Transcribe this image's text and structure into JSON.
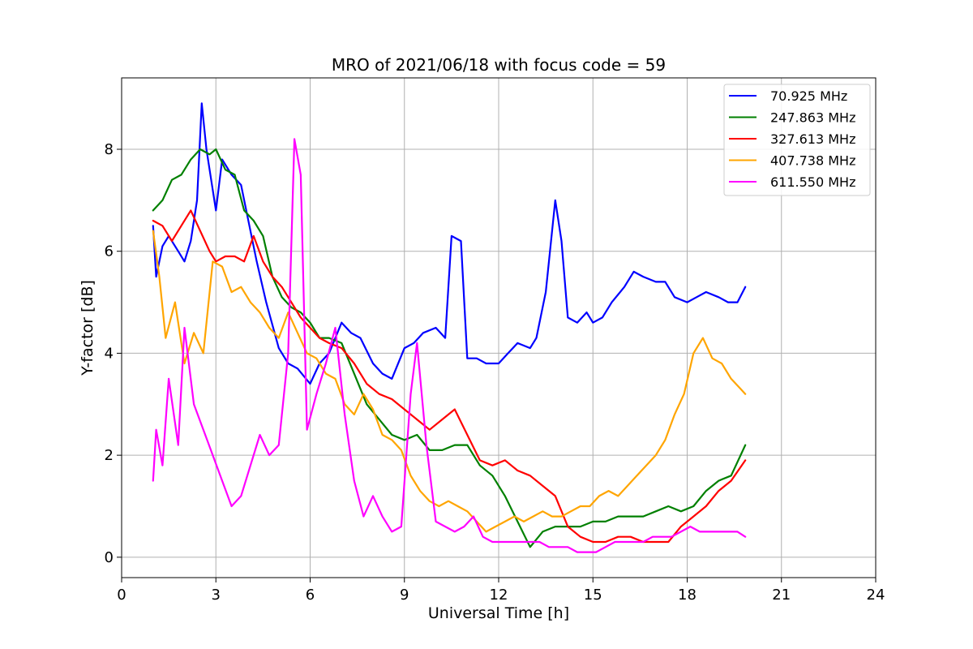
{
  "chart_data": {
    "type": "line",
    "title": "MRO of 2021/06/18 with focus code = 59",
    "xlabel": "Universal Time [h]",
    "ylabel": "Y-factor [dB]",
    "xlim": [
      0,
      24
    ],
    "ylim": [
      -0.4,
      9.4
    ],
    "xticks": [
      0,
      3,
      6,
      9,
      12,
      15,
      18,
      21,
      24
    ],
    "yticks": [
      0,
      2,
      4,
      6,
      8
    ],
    "grid": true,
    "legend_position": "top-right",
    "series": [
      {
        "name": " 70.925 MHz",
        "color": "#0000ff",
        "x": [
          1.0,
          1.1,
          1.3,
          1.5,
          1.8,
          2.0,
          2.2,
          2.4,
          2.55,
          2.7,
          3.0,
          3.2,
          3.5,
          3.8,
          4.0,
          4.3,
          4.6,
          5.0,
          5.3,
          5.6,
          6.0,
          6.3,
          6.6,
          7.0,
          7.3,
          7.6,
          8.0,
          8.3,
          8.6,
          9.0,
          9.3,
          9.6,
          10.0,
          10.3,
          10.5,
          10.8,
          11.0,
          11.3,
          11.6,
          12.0,
          12.3,
          12.6,
          13.0,
          13.2,
          13.5,
          13.8,
          14.0,
          14.2,
          14.5,
          14.8,
          15.0,
          15.3,
          15.6,
          16.0,
          16.3,
          16.6,
          17.0,
          17.3,
          17.6,
          18.0,
          18.3,
          18.6,
          19.0,
          19.3,
          19.6,
          19.85
        ],
        "y": [
          6.5,
          5.5,
          6.1,
          6.3,
          6.0,
          5.8,
          6.2,
          7.0,
          8.9,
          8.0,
          6.8,
          7.8,
          7.5,
          7.3,
          6.7,
          5.8,
          5.0,
          4.1,
          3.8,
          3.7,
          3.4,
          3.8,
          4.0,
          4.6,
          4.4,
          4.3,
          3.8,
          3.6,
          3.5,
          4.1,
          4.2,
          4.4,
          4.5,
          4.3,
          6.3,
          6.2,
          3.9,
          3.9,
          3.8,
          3.8,
          4.0,
          4.2,
          4.1,
          4.3,
          5.2,
          7.0,
          6.2,
          4.7,
          4.6,
          4.8,
          4.6,
          4.7,
          5.0,
          5.3,
          5.6,
          5.5,
          5.4,
          5.4,
          5.1,
          5.0,
          5.1,
          5.2,
          5.1,
          5.0,
          5.0,
          5.3
        ]
      },
      {
        "name": "247.863 MHz",
        "color": "#008000",
        "x": [
          1.0,
          1.3,
          1.6,
          1.9,
          2.2,
          2.5,
          2.8,
          3.0,
          3.3,
          3.6,
          3.9,
          4.2,
          4.5,
          4.8,
          5.1,
          5.4,
          5.7,
          6.0,
          6.3,
          6.6,
          7.0,
          7.4,
          7.8,
          8.2,
          8.6,
          9.0,
          9.4,
          9.8,
          10.2,
          10.6,
          11.0,
          11.4,
          11.8,
          12.2,
          12.6,
          13.0,
          13.4,
          13.8,
          14.2,
          14.6,
          15.0,
          15.4,
          15.8,
          16.2,
          16.6,
          17.0,
          17.4,
          17.8,
          18.2,
          18.6,
          19.0,
          19.4,
          19.85
        ],
        "y": [
          6.8,
          7.0,
          7.4,
          7.5,
          7.8,
          8.0,
          7.9,
          8.0,
          7.6,
          7.5,
          6.8,
          6.6,
          6.3,
          5.5,
          5.1,
          4.9,
          4.8,
          4.6,
          4.3,
          4.3,
          4.2,
          3.6,
          3.0,
          2.7,
          2.4,
          2.3,
          2.4,
          2.1,
          2.1,
          2.2,
          2.2,
          1.8,
          1.6,
          1.2,
          0.7,
          0.2,
          0.5,
          0.6,
          0.6,
          0.6,
          0.7,
          0.7,
          0.8,
          0.8,
          0.8,
          0.9,
          1.0,
          0.9,
          1.0,
          1.3,
          1.5,
          1.6,
          2.2
        ]
      },
      {
        "name": "327.613 MHz",
        "color": "#ff0000",
        "x": [
          1.0,
          1.3,
          1.6,
          1.9,
          2.2,
          2.5,
          2.8,
          3.0,
          3.3,
          3.6,
          3.9,
          4.2,
          4.5,
          4.8,
          5.1,
          5.4,
          5.7,
          6.0,
          6.3,
          6.6,
          7.0,
          7.4,
          7.8,
          8.2,
          8.6,
          9.0,
          9.4,
          9.8,
          10.2,
          10.6,
          11.0,
          11.4,
          11.8,
          12.2,
          12.6,
          13.0,
          13.4,
          13.8,
          14.2,
          14.6,
          15.0,
          15.4,
          15.8,
          16.2,
          16.6,
          17.0,
          17.4,
          17.8,
          18.2,
          18.6,
          19.0,
          19.4,
          19.85
        ],
        "y": [
          6.6,
          6.5,
          6.2,
          6.5,
          6.8,
          6.4,
          6.0,
          5.8,
          5.9,
          5.9,
          5.8,
          6.3,
          5.8,
          5.5,
          5.3,
          5.0,
          4.7,
          4.5,
          4.3,
          4.2,
          4.1,
          3.8,
          3.4,
          3.2,
          3.1,
          2.9,
          2.7,
          2.5,
          2.7,
          2.9,
          2.4,
          1.9,
          1.8,
          1.9,
          1.7,
          1.6,
          1.4,
          1.2,
          0.6,
          0.4,
          0.3,
          0.3,
          0.4,
          0.4,
          0.3,
          0.3,
          0.3,
          0.6,
          0.8,
          1.0,
          1.3,
          1.5,
          1.9
        ]
      },
      {
        "name": "407.738 MHz",
        "color": "#ffa500",
        "x": [
          1.0,
          1.2,
          1.4,
          1.7,
          2.0,
          2.3,
          2.6,
          2.9,
          3.2,
          3.5,
          3.8,
          4.1,
          4.4,
          4.7,
          5.0,
          5.3,
          5.6,
          5.9,
          6.2,
          6.5,
          6.8,
          7.1,
          7.4,
          7.7,
          8.0,
          8.3,
          8.6,
          8.9,
          9.2,
          9.5,
          9.8,
          10.1,
          10.4,
          10.7,
          11.0,
          11.3,
          11.6,
          11.9,
          12.2,
          12.5,
          12.8,
          13.1,
          13.4,
          13.7,
          14.0,
          14.3,
          14.6,
          14.9,
          15.2,
          15.5,
          15.8,
          16.1,
          16.4,
          16.7,
          17.0,
          17.3,
          17.6,
          17.9,
          18.2,
          18.5,
          18.8,
          19.1,
          19.4,
          19.7,
          19.85
        ],
        "y": [
          6.4,
          5.5,
          4.3,
          5.0,
          3.8,
          4.4,
          4.0,
          5.8,
          5.7,
          5.2,
          5.3,
          5.0,
          4.8,
          4.5,
          4.3,
          4.8,
          4.4,
          4.0,
          3.9,
          3.6,
          3.5,
          3.0,
          2.8,
          3.2,
          2.9,
          2.4,
          2.3,
          2.1,
          1.6,
          1.3,
          1.1,
          1.0,
          1.1,
          1.0,
          0.9,
          0.7,
          0.5,
          0.6,
          0.7,
          0.8,
          0.7,
          0.8,
          0.9,
          0.8,
          0.8,
          0.9,
          1.0,
          1.0,
          1.2,
          1.3,
          1.2,
          1.4,
          1.6,
          1.8,
          2.0,
          2.3,
          2.8,
          3.2,
          4.0,
          4.3,
          3.9,
          3.8,
          3.5,
          3.3,
          3.2
        ]
      },
      {
        "name": "611.550 MHz",
        "color": "#ff00ff",
        "x": [
          1.0,
          1.1,
          1.3,
          1.5,
          1.8,
          2.0,
          2.3,
          2.6,
          2.9,
          3.2,
          3.5,
          3.8,
          4.1,
          4.4,
          4.7,
          5.0,
          5.3,
          5.5,
          5.7,
          5.9,
          6.2,
          6.5,
          6.8,
          7.1,
          7.4,
          7.7,
          8.0,
          8.3,
          8.6,
          8.9,
          9.2,
          9.4,
          9.7,
          10.0,
          10.3,
          10.6,
          10.9,
          11.2,
          11.5,
          11.8,
          12.1,
          12.4,
          12.7,
          13.0,
          13.3,
          13.6,
          13.9,
          14.2,
          14.5,
          14.8,
          15.1,
          15.4,
          15.7,
          16.0,
          16.3,
          16.6,
          16.9,
          17.2,
          17.5,
          17.8,
          18.1,
          18.4,
          18.7,
          19.0,
          19.3,
          19.6,
          19.85
        ],
        "y": [
          1.5,
          2.5,
          1.8,
          3.5,
          2.2,
          4.5,
          3.0,
          2.5,
          2.0,
          1.5,
          1.0,
          1.2,
          1.8,
          2.4,
          2.0,
          2.2,
          4.0,
          8.2,
          7.5,
          2.5,
          3.2,
          3.8,
          4.5,
          2.8,
          1.5,
          0.8,
          1.2,
          0.8,
          0.5,
          0.6,
          3.2,
          4.2,
          2.2,
          0.7,
          0.6,
          0.5,
          0.6,
          0.8,
          0.4,
          0.3,
          0.3,
          0.3,
          0.3,
          0.3,
          0.3,
          0.2,
          0.2,
          0.2,
          0.1,
          0.1,
          0.1,
          0.2,
          0.3,
          0.3,
          0.3,
          0.3,
          0.4,
          0.4,
          0.4,
          0.5,
          0.6,
          0.5,
          0.5,
          0.5,
          0.5,
          0.5,
          0.4
        ]
      }
    ]
  }
}
